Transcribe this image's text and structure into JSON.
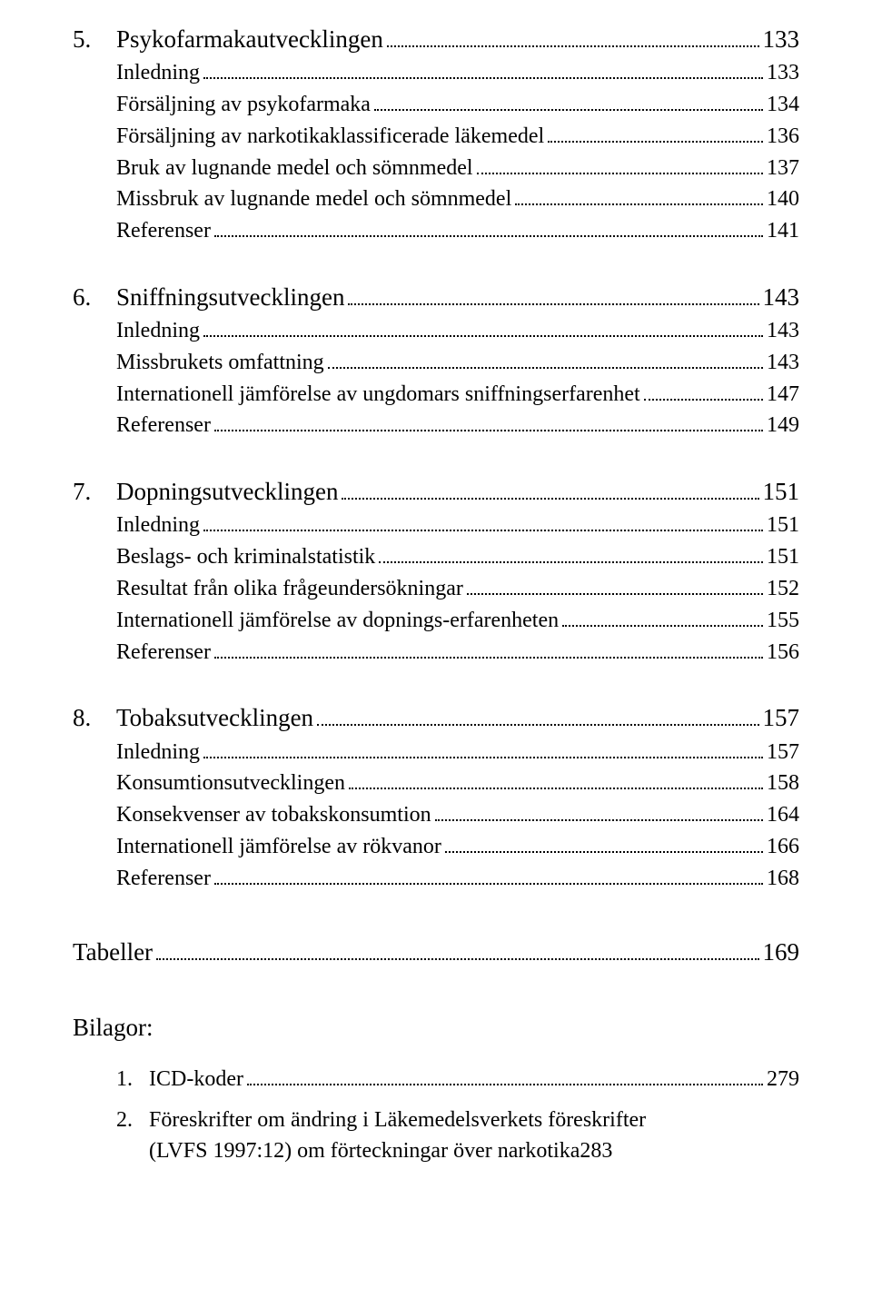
{
  "sections": [
    {
      "num": "5.",
      "title": "Psykofarmakautvecklingen",
      "page": "133",
      "items": [
        {
          "label": "Inledning",
          "page": "133"
        },
        {
          "label": "Försäljning av psykofarmaka",
          "page": "134"
        },
        {
          "label": "Försäljning av narkotikaklassificerade läkemedel",
          "page": "136"
        },
        {
          "label": "Bruk av lugnande medel och sömnmedel",
          "page": "137"
        },
        {
          "label": "Missbruk av lugnande medel och sömnmedel",
          "page": "140"
        },
        {
          "label": "Referenser",
          "page": "141"
        }
      ]
    },
    {
      "num": "6.",
      "title": "Sniffningsutvecklingen",
      "page": "143",
      "items": [
        {
          "label": "Inledning",
          "page": "143"
        },
        {
          "label": "Missbrukets omfattning",
          "page": "143"
        },
        {
          "label": "Internationell jämförelse av ungdomars sniffningserfarenhet",
          "page": "147"
        },
        {
          "label": "Referenser",
          "page": "149"
        }
      ]
    },
    {
      "num": "7.",
      "title": "Dopningsutvecklingen",
      "page": "151",
      "items": [
        {
          "label": "Inledning",
          "page": "151"
        },
        {
          "label": "Beslags- och kriminalstatistik",
          "page": "151"
        },
        {
          "label": "Resultat från olika frågeundersökningar",
          "page": "152"
        },
        {
          "label": "Internationell jämförelse av dopnings-erfarenheten",
          "page": "155"
        },
        {
          "label": "Referenser",
          "page": "156"
        }
      ]
    },
    {
      "num": "8.",
      "title": "Tobaksutvecklingen",
      "page": "157",
      "items": [
        {
          "label": "Inledning",
          "page": "157"
        },
        {
          "label": "Konsumtionsutvecklingen",
          "page": "158"
        },
        {
          "label": "Konsekvenser av tobakskonsumtion",
          "page": "164"
        },
        {
          "label": "Internationell jämförelse av rökvanor",
          "page": "166"
        },
        {
          "label": "Referenser",
          "page": "168"
        }
      ]
    }
  ],
  "tabeller": {
    "label": "Tabeller",
    "page": "169"
  },
  "bilagor": {
    "heading": "Bilagor:",
    "items": [
      {
        "num": "1.",
        "label": "ICD-koder",
        "page": "279",
        "multiline": false
      },
      {
        "num": "2.",
        "line1": "Föreskrifter om ändring i Läkemedelsverkets föreskrifter",
        "line2": "(LVFS 1997:12) om förteckningar över narkotika",
        "page": "283",
        "multiline": true
      }
    ]
  }
}
